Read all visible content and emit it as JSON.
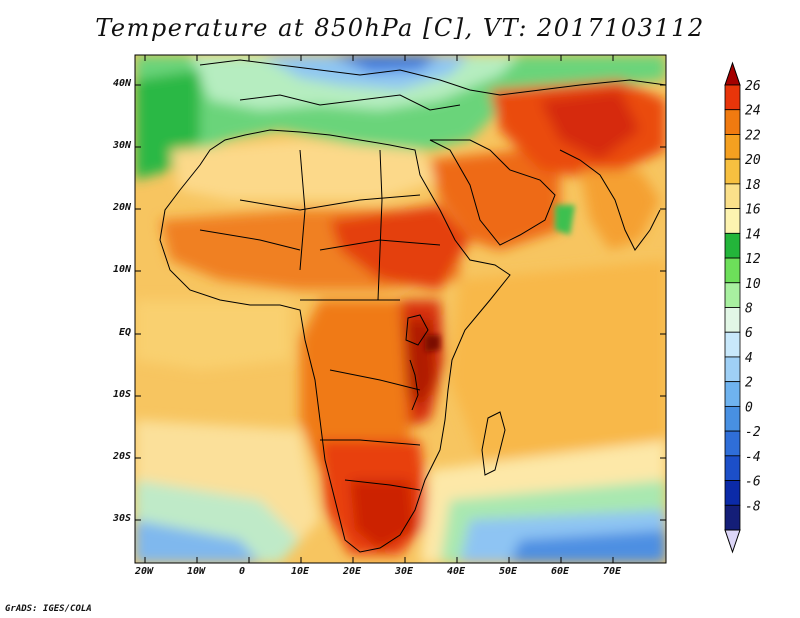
{
  "title": "Temperature at 850hPa [C], VT: 2017103112",
  "credit": "GrADS: IGES/COLA",
  "axes": {
    "y_ticks": [
      "40N",
      "30N",
      "20N",
      "10N",
      "EQ",
      "10S",
      "20S",
      "30S"
    ],
    "x_ticks": [
      "20W",
      "10W",
      "0",
      "10E",
      "20E",
      "30E",
      "40E",
      "50E",
      "60E",
      "70E"
    ]
  },
  "colorbar": {
    "labels": [
      "26",
      "24",
      "22",
      "20",
      "18",
      "16",
      "14",
      "12",
      "10",
      "8",
      "6",
      "4",
      "2",
      "0",
      "-2",
      "-4",
      "-6",
      "-8"
    ],
    "colors": [
      "#a50000",
      "#e8350a",
      "#f07a10",
      "#f5a020",
      "#f7c040",
      "#fbe08a",
      "#fdf3b0",
      "#23b53a",
      "#6ddf5a",
      "#a8f0a0",
      "#e2f7e6",
      "#c8e8fb",
      "#9fd0f6",
      "#6fb3ef",
      "#4890e2",
      "#2f6ed8",
      "#1c4fc8",
      "#0b2aa8",
      "#141e78",
      "#dcd6f7"
    ]
  }
}
